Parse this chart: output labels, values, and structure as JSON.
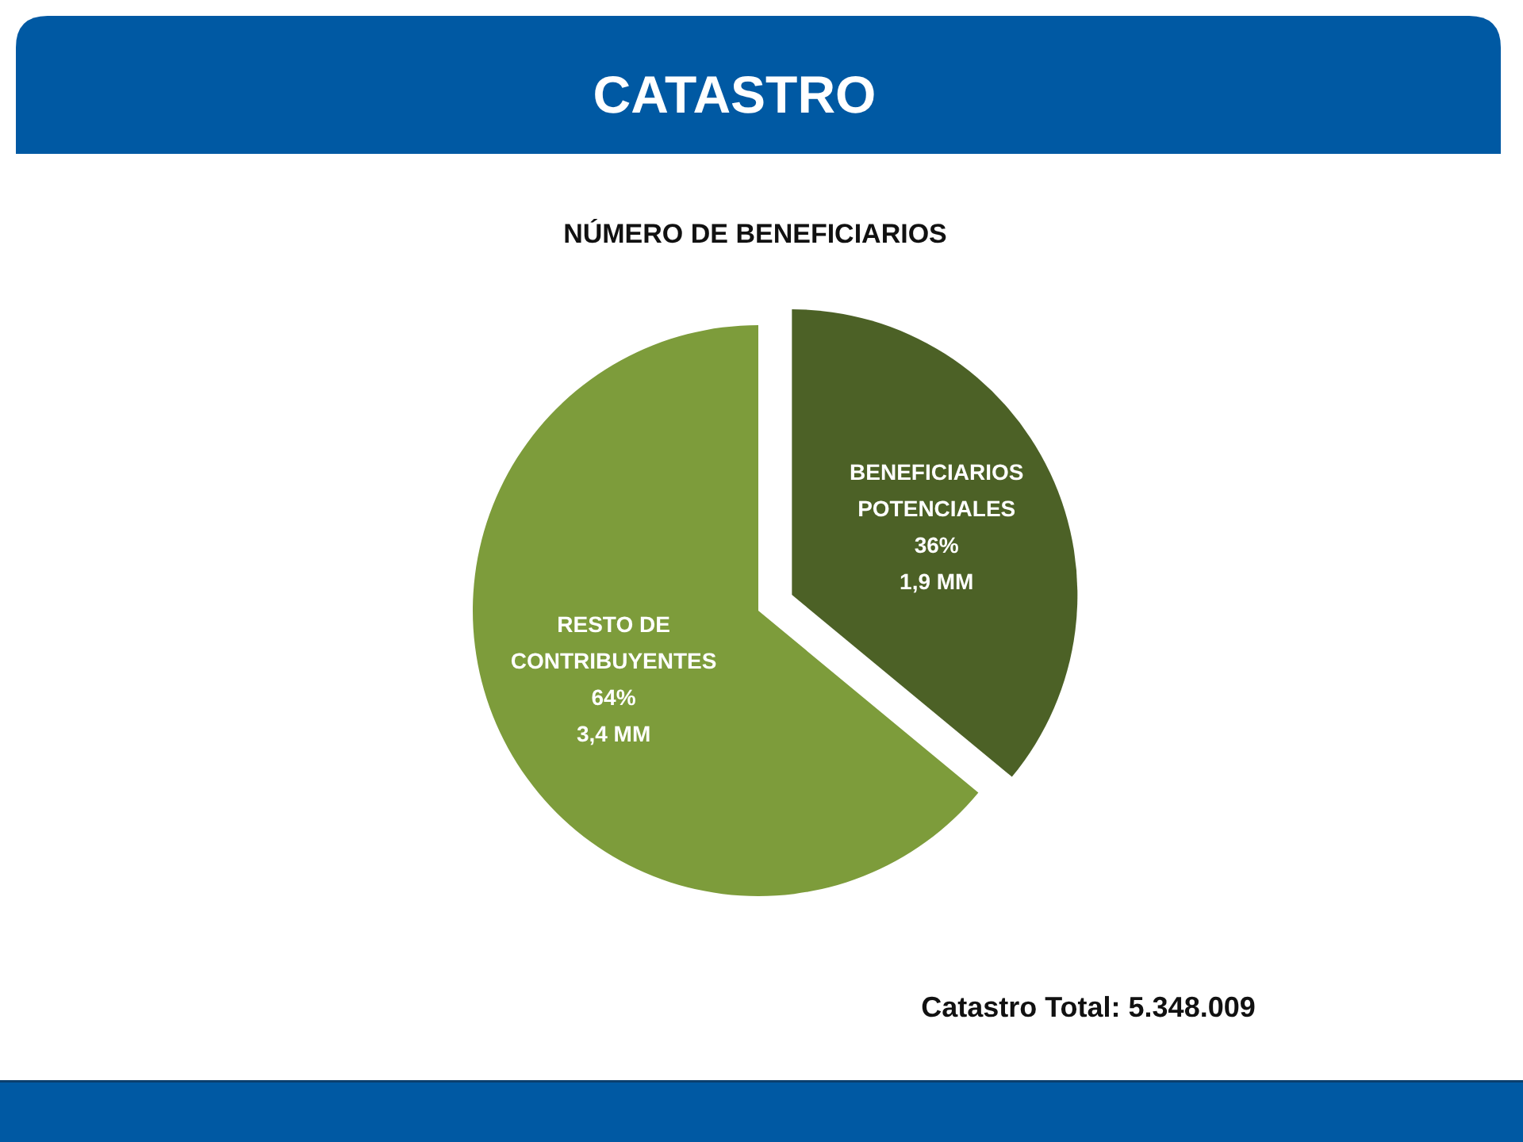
{
  "chart_data": {
    "type": "pie",
    "title": "CATASTRO",
    "subtitle": "NÚMERO DE BENEFICIARIOS",
    "categories": [
      "BENEFICIARIOS POTENCIALES",
      "RESTO DE CONTRIBUYENTES"
    ],
    "values": [
      36,
      64
    ],
    "colors": [
      "#4c6126",
      "#7d9c3b"
    ],
    "value_labels": [
      "36%\n1,9 MM",
      "64%\n3,4 MM"
    ],
    "annotations": [
      "Catastro Total: 5.348.009"
    ]
  }
}
